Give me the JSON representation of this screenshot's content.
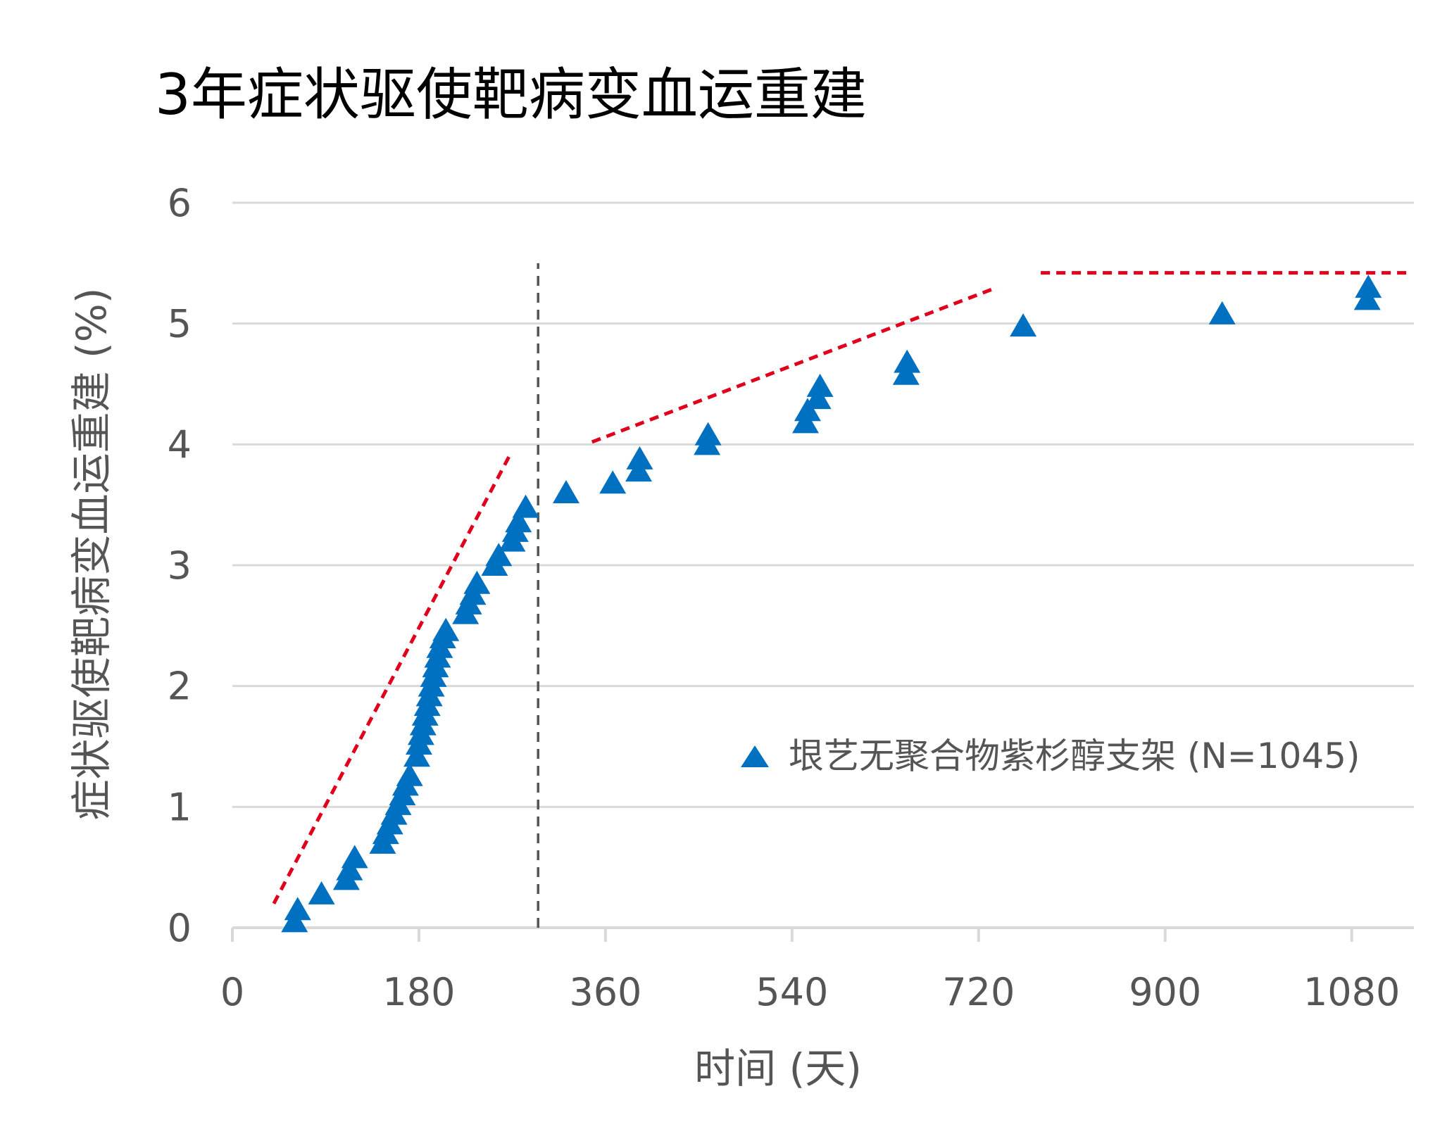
{
  "chart_data": {
    "type": "scatter",
    "title": "3年症状驱使靶病变血运重建",
    "xlabel": "时间 (天)",
    "ylabel": "症状驱使靶病变血运重建 (%)",
    "xlim": [
      0,
      1140
    ],
    "ylim": [
      0,
      6
    ],
    "xticks": [
      0,
      180,
      360,
      540,
      720,
      900,
      1080
    ],
    "yticks": [
      0,
      1,
      2,
      3,
      4,
      5,
      6
    ],
    "grid": true,
    "legend_position": "right",
    "series": [
      {
        "name": "垠艺无聚合物紫杉醇支架 (N=1045)",
        "color": "#0070C0",
        "marker": "triangle",
        "points": [
          [
            60,
            0.05
          ],
          [
            63,
            0.15
          ],
          [
            86,
            0.28
          ],
          [
            110,
            0.4
          ],
          [
            113,
            0.48
          ],
          [
            118,
            0.58
          ],
          [
            145,
            0.7
          ],
          [
            148,
            0.78
          ],
          [
            152,
            0.86
          ],
          [
            156,
            0.94
          ],
          [
            160,
            1.02
          ],
          [
            164,
            1.1
          ],
          [
            167,
            1.18
          ],
          [
            171,
            1.26
          ],
          [
            178,
            1.42
          ],
          [
            180,
            1.52
          ],
          [
            182,
            1.6
          ],
          [
            184,
            1.68
          ],
          [
            186,
            1.76
          ],
          [
            188,
            1.84
          ],
          [
            190,
            1.92
          ],
          [
            192,
            2.0
          ],
          [
            194,
            2.08
          ],
          [
            196,
            2.16
          ],
          [
            198,
            2.24
          ],
          [
            200,
            2.32
          ],
          [
            203,
            2.4
          ],
          [
            206,
            2.46
          ],
          [
            225,
            2.6
          ],
          [
            228,
            2.68
          ],
          [
            232,
            2.76
          ],
          [
            236,
            2.85
          ],
          [
            253,
            3.0
          ],
          [
            257,
            3.08
          ],
          [
            270,
            3.2
          ],
          [
            273,
            3.28
          ],
          [
            276,
            3.36
          ],
          [
            283,
            3.48
          ],
          [
            322,
            3.6
          ],
          [
            367,
            3.68
          ],
          [
            392,
            3.78
          ],
          [
            393,
            3.88
          ],
          [
            458,
            4.0
          ],
          [
            459,
            4.08
          ],
          [
            553,
            4.18
          ],
          [
            555,
            4.28
          ],
          [
            565,
            4.38
          ],
          [
            567,
            4.48
          ],
          [
            650,
            4.58
          ],
          [
            651,
            4.68
          ],
          [
            763,
            4.98
          ],
          [
            955,
            5.08
          ],
          [
            1095,
            5.2
          ],
          [
            1096,
            5.3
          ]
        ]
      }
    ],
    "trend_lines": [
      {
        "color": "#E0001B",
        "points": [
          [
            40,
            0.2
          ],
          [
            267,
            3.9
          ]
        ]
      },
      {
        "color": "#E0001B",
        "points": [
          [
            347,
            4.02
          ],
          [
            738,
            5.3
          ]
        ]
      },
      {
        "color": "#E0001B",
        "points": [
          [
            780,
            5.42
          ],
          [
            1134,
            5.42
          ]
        ]
      }
    ],
    "reference_lines": [
      {
        "x": 295,
        "y_range": [
          0,
          5.5
        ],
        "color": "#555555"
      }
    ]
  }
}
